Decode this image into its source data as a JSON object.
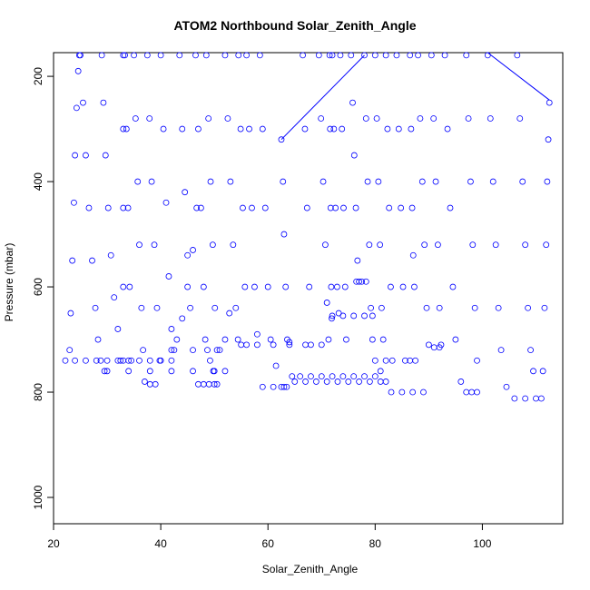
{
  "chart_data": {
    "type": "scatter",
    "title": "ATOM2 Northbound Solar_Zenith_Angle",
    "xlabel": "Solar_Zenith_Angle",
    "ylabel": "Pressure (mbar)",
    "xlim": [
      20,
      115
    ],
    "ylim": [
      1050,
      155
    ],
    "y_inverted": true,
    "x_ticks": [
      20,
      40,
      60,
      80,
      100
    ],
    "y_ticks": [
      200,
      400,
      600,
      800,
      1000
    ],
    "grid": false,
    "legend": "none",
    "marker": "open-circle",
    "color": "#0000ff",
    "series": [
      {
        "points": [
          [
            22.2,
            740
          ],
          [
            24,
            740
          ],
          [
            26,
            740
          ],
          [
            28,
            740
          ],
          [
            30,
            740
          ],
          [
            32,
            740
          ],
          [
            34,
            740
          ],
          [
            36,
            740
          ],
          [
            38,
            740
          ],
          [
            40,
            740
          ],
          [
            42,
            740
          ],
          [
            23,
            720
          ],
          [
            23.2,
            650
          ],
          [
            23.5,
            550
          ],
          [
            23.8,
            440
          ],
          [
            24,
            350
          ],
          [
            24.3,
            260
          ],
          [
            24.6,
            190
          ],
          [
            24.8,
            160
          ],
          [
            25,
            160
          ],
          [
            25.5,
            250
          ],
          [
            26,
            350
          ],
          [
            26.6,
            450
          ],
          [
            27.2,
            550
          ],
          [
            27.8,
            640
          ],
          [
            28.3,
            700
          ],
          [
            28.8,
            740
          ],
          [
            29.5,
            760
          ],
          [
            30,
            760
          ],
          [
            34,
            760
          ],
          [
            38,
            760
          ],
          [
            42,
            760
          ],
          [
            46,
            760
          ],
          [
            50,
            760
          ],
          [
            52,
            760
          ],
          [
            29,
            160
          ],
          [
            29.3,
            250
          ],
          [
            29.7,
            350
          ],
          [
            30.2,
            450
          ],
          [
            30.7,
            540
          ],
          [
            31.3,
            620
          ],
          [
            32,
            680
          ],
          [
            32.5,
            740
          ],
          [
            33,
            740
          ],
          [
            33,
            600
          ],
          [
            33,
            450
          ],
          [
            33,
            300
          ],
          [
            33,
            160
          ],
          [
            33.3,
            160
          ],
          [
            33.6,
            300
          ],
          [
            33.9,
            450
          ],
          [
            34.2,
            600
          ],
          [
            34.5,
            740
          ],
          [
            35,
            160
          ],
          [
            35.3,
            280
          ],
          [
            35.7,
            400
          ],
          [
            36,
            520
          ],
          [
            36.4,
            640
          ],
          [
            36.7,
            720
          ],
          [
            37,
            780
          ],
          [
            38,
            785
          ],
          [
            39,
            785
          ],
          [
            37.5,
            160
          ],
          [
            37.9,
            280
          ],
          [
            38.3,
            400
          ],
          [
            38.8,
            520
          ],
          [
            39.3,
            640
          ],
          [
            39.8,
            740
          ],
          [
            40,
            160
          ],
          [
            40.5,
            300
          ],
          [
            41,
            440
          ],
          [
            41.5,
            580
          ],
          [
            42,
            680
          ],
          [
            42.5,
            720
          ],
          [
            42,
            720
          ],
          [
            43,
            700
          ],
          [
            44,
            660
          ],
          [
            45,
            600
          ],
          [
            46,
            530
          ],
          [
            46.7,
            450
          ],
          [
            43.5,
            160
          ],
          [
            44,
            300
          ],
          [
            44.5,
            420
          ],
          [
            45,
            540
          ],
          [
            45.5,
            640
          ],
          [
            46,
            720
          ],
          [
            46.5,
            160
          ],
          [
            47,
            300
          ],
          [
            47.5,
            450
          ],
          [
            48,
            600
          ],
          [
            48.3,
            700
          ],
          [
            48.7,
            720
          ],
          [
            49.2,
            740
          ],
          [
            49.8,
            760
          ],
          [
            50.5,
            785
          ],
          [
            47,
            785
          ],
          [
            48,
            785
          ],
          [
            49,
            785
          ],
          [
            50,
            785
          ],
          [
            48.5,
            160
          ],
          [
            48.9,
            280
          ],
          [
            49.3,
            400
          ],
          [
            49.7,
            520
          ],
          [
            50.1,
            640
          ],
          [
            50.5,
            720
          ],
          [
            51,
            720
          ],
          [
            52,
            700
          ],
          [
            52.8,
            650
          ],
          [
            52,
            160
          ],
          [
            52.5,
            280
          ],
          [
            53,
            400
          ],
          [
            53.5,
            520
          ],
          [
            54,
            640
          ],
          [
            54.4,
            700
          ],
          [
            54.5,
            160
          ],
          [
            54.9,
            300
          ],
          [
            55.3,
            450
          ],
          [
            55.7,
            600
          ],
          [
            56,
            710
          ],
          [
            55,
            710
          ],
          [
            58,
            710
          ],
          [
            61,
            710
          ],
          [
            64,
            710
          ],
          [
            67,
            710
          ],
          [
            70,
            710
          ],
          [
            56,
            160
          ],
          [
            56.5,
            300
          ],
          [
            57,
            450
          ],
          [
            57.5,
            600
          ],
          [
            58,
            690
          ],
          [
            58.5,
            160
          ],
          [
            59,
            300
          ],
          [
            59.5,
            450
          ],
          [
            60,
            600
          ],
          [
            60.5,
            700
          ],
          [
            61.5,
            750
          ],
          [
            62.5,
            790
          ],
          [
            63.5,
            790
          ],
          [
            59,
            790
          ],
          [
            61,
            790
          ],
          [
            63,
            790
          ],
          [
            62.5,
            320
          ],
          [
            62.8,
            400
          ],
          [
            63,
            500
          ],
          [
            63.3,
            600
          ],
          [
            63.6,
            700
          ],
          [
            64,
            705
          ],
          [
            64.5,
            770
          ],
          [
            66,
            770
          ],
          [
            68,
            770
          ],
          [
            70,
            770
          ],
          [
            72,
            770
          ],
          [
            74,
            770
          ],
          [
            76,
            770
          ],
          [
            78,
            770
          ],
          [
            80,
            770
          ],
          [
            65,
            780
          ],
          [
            67,
            780
          ],
          [
            69,
            780
          ],
          [
            71,
            780
          ],
          [
            73,
            780
          ],
          [
            75,
            780
          ],
          [
            77,
            780
          ],
          [
            79,
            780
          ],
          [
            81,
            780
          ],
          [
            66.5,
            160
          ],
          [
            66.9,
            300
          ],
          [
            67.3,
            450
          ],
          [
            67.7,
            600
          ],
          [
            68,
            710
          ],
          [
            69.5,
            160
          ],
          [
            69.9,
            280
          ],
          [
            70.3,
            400
          ],
          [
            70.7,
            520
          ],
          [
            71,
            630
          ],
          [
            71.3,
            700
          ],
          [
            71.5,
            160
          ],
          [
            71.6,
            300
          ],
          [
            71.7,
            450
          ],
          [
            71.8,
            600
          ],
          [
            71.9,
            660
          ],
          [
            72,
            160
          ],
          [
            72.3,
            300
          ],
          [
            72.6,
            450
          ],
          [
            72.9,
            600
          ],
          [
            73.2,
            650
          ],
          [
            73.5,
            160
          ],
          [
            73.8,
            300
          ],
          [
            74.1,
            450
          ],
          [
            74.4,
            600
          ],
          [
            74.6,
            700
          ],
          [
            72,
            655
          ],
          [
            74,
            655
          ],
          [
            76,
            655
          ],
          [
            78,
            655
          ],
          [
            79.5,
            655
          ],
          [
            75.5,
            160
          ],
          [
            75.8,
            250
          ],
          [
            76.1,
            350
          ],
          [
            76.4,
            450
          ],
          [
            76.7,
            550
          ],
          [
            77,
            590
          ],
          [
            76.5,
            590
          ],
          [
            77.5,
            590
          ],
          [
            78.3,
            590
          ],
          [
            78,
            160
          ],
          [
            78.3,
            280
          ],
          [
            78.6,
            400
          ],
          [
            78.9,
            520
          ],
          [
            79.2,
            640
          ],
          [
            79.5,
            700
          ],
          [
            80,
            740
          ],
          [
            81,
            760
          ],
          [
            82,
            780
          ],
          [
            80,
            160
          ],
          [
            80.3,
            280
          ],
          [
            80.6,
            400
          ],
          [
            80.9,
            520
          ],
          [
            81.2,
            640
          ],
          [
            81.5,
            700
          ],
          [
            82,
            740
          ],
          [
            82,
            160
          ],
          [
            82.3,
            300
          ],
          [
            82.6,
            450
          ],
          [
            82.9,
            600
          ],
          [
            83.2,
            740
          ],
          [
            83,
            800
          ],
          [
            85,
            800
          ],
          [
            87,
            800
          ],
          [
            89,
            800
          ],
          [
            84,
            160
          ],
          [
            84.4,
            300
          ],
          [
            84.8,
            450
          ],
          [
            85.2,
            600
          ],
          [
            85.6,
            740
          ],
          [
            86.5,
            740
          ],
          [
            86.5,
            160
          ],
          [
            86.7,
            300
          ],
          [
            86.9,
            450
          ],
          [
            87.1,
            540
          ],
          [
            87.3,
            600
          ],
          [
            87.5,
            740
          ],
          [
            88,
            160
          ],
          [
            88.4,
            280
          ],
          [
            88.8,
            400
          ],
          [
            89.2,
            520
          ],
          [
            89.6,
            640
          ],
          [
            90,
            710
          ],
          [
            91,
            715
          ],
          [
            92,
            715
          ],
          [
            90.5,
            160
          ],
          [
            90.9,
            280
          ],
          [
            91.3,
            400
          ],
          [
            91.7,
            520
          ],
          [
            92,
            640
          ],
          [
            92.3,
            710
          ],
          [
            93,
            160
          ],
          [
            93.5,
            300
          ],
          [
            94,
            450
          ],
          [
            94.5,
            600
          ],
          [
            95,
            700
          ],
          [
            96,
            780
          ],
          [
            97,
            800
          ],
          [
            98,
            800
          ],
          [
            99,
            800
          ],
          [
            97,
            160
          ],
          [
            97.4,
            280
          ],
          [
            97.8,
            400
          ],
          [
            98.2,
            520
          ],
          [
            98.6,
            640
          ],
          [
            99,
            740
          ],
          [
            101,
            160
          ],
          [
            101.5,
            280
          ],
          [
            102,
            400
          ],
          [
            102.5,
            520
          ],
          [
            103,
            640
          ],
          [
            103.5,
            720
          ],
          [
            104.5,
            790
          ],
          [
            106,
            812
          ],
          [
            108,
            812
          ],
          [
            110,
            812
          ],
          [
            106.5,
            160
          ],
          [
            107,
            280
          ],
          [
            107.5,
            400
          ],
          [
            108,
            520
          ],
          [
            108.5,
            640
          ],
          [
            109,
            720
          ],
          [
            109.5,
            760
          ],
          [
            111,
            812
          ],
          [
            111.3,
            760
          ],
          [
            111.6,
            640
          ],
          [
            111.9,
            520
          ],
          [
            112.1,
            400
          ],
          [
            112.3,
            320
          ],
          [
            112.5,
            250
          ]
        ]
      }
    ],
    "lines": [
      [
        [
          62.5,
          320
        ],
        [
          78,
          160
        ]
      ],
      [
        [
          101,
          155
        ],
        [
          112.5,
          245
        ]
      ]
    ]
  }
}
